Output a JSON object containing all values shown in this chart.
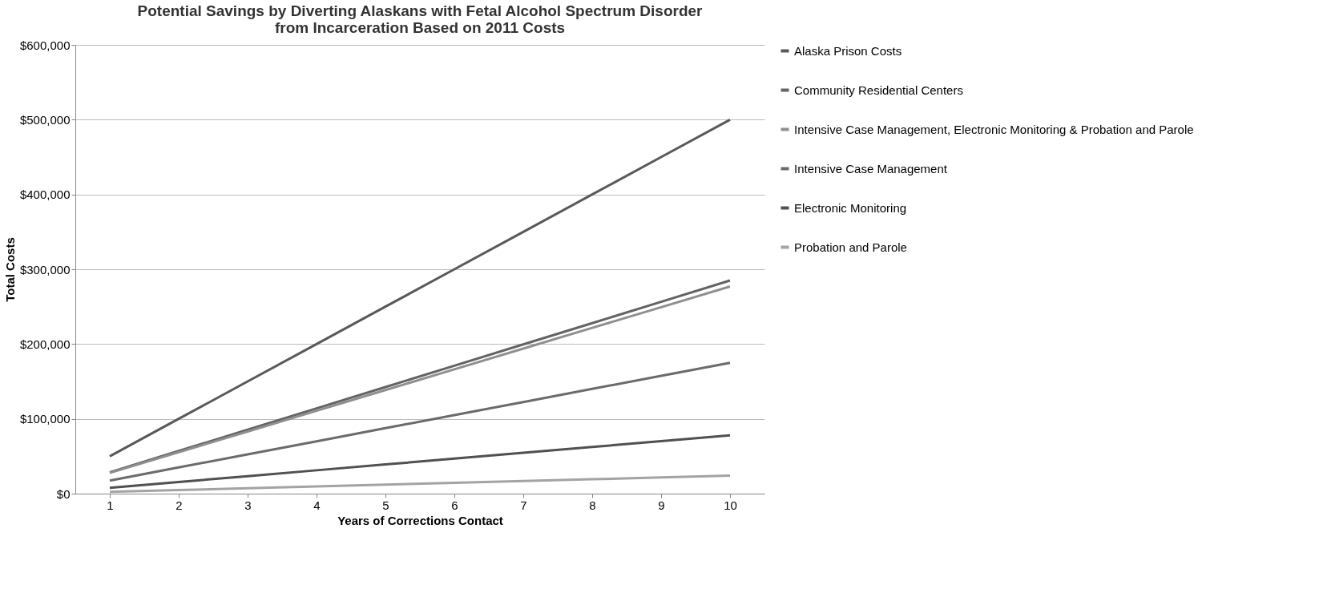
{
  "chart_data": {
    "type": "line",
    "title": [
      "Potential Savings by Diverting Alaskans with Fetal Alcohol Spectrum Disorder",
      "from Incarceration Based on 2011 Costs"
    ],
    "xlabel": "Years of Corrections Contact",
    "ylabel": "Total Costs",
    "categories": [
      "1",
      "2",
      "3",
      "4",
      "5",
      "6",
      "7",
      "8",
      "9",
      "10"
    ],
    "series": [
      {
        "name": "Alaska Prison Costs",
        "color": "#595959",
        "values": [
          50000,
          100000,
          150000,
          200000,
          250000,
          300000,
          350000,
          400000,
          450000,
          500000
        ]
      },
      {
        "name": "Community Residential Centers",
        "color": "#636363",
        "values": [
          28500,
          57000,
          85500,
          114000,
          142500,
          171000,
          199500,
          228000,
          256500,
          285000
        ]
      },
      {
        "name": "Intensive Case Management, Electronic Monitoring & Probation and Parole",
        "color": "#8f8f8f",
        "values": [
          27700,
          55400,
          83100,
          110800,
          138500,
          166200,
          193900,
          221600,
          249300,
          277000
        ]
      },
      {
        "name": "Intensive Case Management",
        "color": "#6b6b6b",
        "values": [
          17500,
          35000,
          52500,
          70000,
          87500,
          105000,
          122500,
          140000,
          157500,
          175000
        ]
      },
      {
        "name": "Electronic Monitoring",
        "color": "#505050",
        "values": [
          7800,
          15600,
          23400,
          31200,
          39000,
          46800,
          54600,
          62400,
          70200,
          78000
        ]
      },
      {
        "name": "Probation and Parole",
        "color": "#a3a3a3",
        "values": [
          2400,
          4800,
          7200,
          9600,
          12000,
          14400,
          16800,
          19200,
          21600,
          24000
        ]
      }
    ],
    "ylim": [
      0,
      600000
    ],
    "yticks": [
      {
        "value": 0,
        "label": "$0"
      },
      {
        "value": 100000,
        "label": "$100,000"
      },
      {
        "value": 200000,
        "label": "$200,000"
      },
      {
        "value": 300000,
        "label": "$300,000"
      },
      {
        "value": 400000,
        "label": "$400,000"
      },
      {
        "value": 500000,
        "label": "$500,000"
      },
      {
        "value": 600000,
        "label": "$600,000"
      }
    ],
    "grid": "y",
    "legend": "right",
    "marker": "none",
    "line_style": "solid"
  }
}
